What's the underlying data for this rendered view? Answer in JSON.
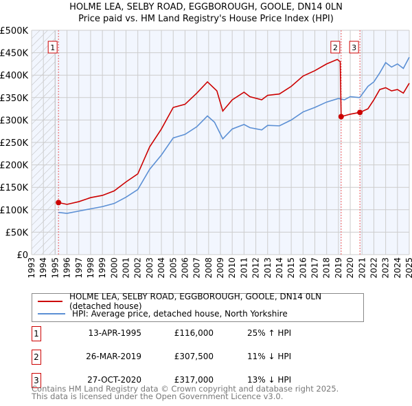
{
  "chart_data": {
    "type": "line",
    "title": "HOLME LEA, SELBY ROAD, EGGBOROUGH, GOOLE, DN14 0LN",
    "subtitle": "Price paid vs. HM Land Registry's House Price Index (HPI)",
    "xlim": [
      1993,
      2025
    ],
    "ylim": [
      0,
      500000
    ],
    "x_ticks": [
      "1993",
      "1994",
      "1995",
      "1996",
      "1997",
      "1998",
      "1999",
      "2000",
      "2001",
      "2002",
      "2003",
      "2004",
      "2005",
      "2006",
      "2007",
      "2008",
      "2009",
      "2010",
      "2011",
      "2012",
      "2013",
      "2014",
      "2015",
      "2016",
      "2017",
      "2018",
      "2019",
      "2020",
      "2021",
      "2022",
      "2023",
      "2024",
      "2025"
    ],
    "y_ticks": [
      {
        "v": 0,
        "label": "£0"
      },
      {
        "v": 50000,
        "label": "£50K"
      },
      {
        "v": 100000,
        "label": "£100K"
      },
      {
        "v": 150000,
        "label": "£150K"
      },
      {
        "v": 200000,
        "label": "£200K"
      },
      {
        "v": 250000,
        "label": "£250K"
      },
      {
        "v": 300000,
        "label": "£300K"
      },
      {
        "v": 350000,
        "label": "£350K"
      },
      {
        "v": 400000,
        "label": "£400K"
      },
      {
        "v": 450000,
        "label": "£450K"
      },
      {
        "v": 500000,
        "label": "£500K"
      }
    ],
    "series": [
      {
        "name": "HOLME LEA, SELBY ROAD, EGGBOROUGH, GOOLE, DN14 0LN (detached house)",
        "color": "#cc0000",
        "x": [
          1995.28,
          1996,
          1997,
          1998,
          1999,
          2000,
          2001,
          2002,
          2003,
          2004,
          2005,
          2006,
          2007,
          2007.9,
          2008.7,
          2009.2,
          2010,
          2011,
          2011.5,
          2012.5,
          2013,
          2014,
          2015,
          2016,
          2017,
          2018,
          2018.9,
          2019.15,
          2019.23,
          2020,
          2020.82,
          2021.5,
          2022,
          2022.5,
          2023,
          2023.5,
          2024,
          2024.5,
          2025
        ],
        "y": [
          116000,
          112000,
          118000,
          127000,
          132000,
          142000,
          162000,
          180000,
          240000,
          280000,
          328000,
          335000,
          360000,
          385000,
          365000,
          320000,
          345000,
          362000,
          352000,
          345000,
          355000,
          358000,
          375000,
          398000,
          410000,
          425000,
          435000,
          430000,
          307500,
          313000,
          317000,
          325000,
          345000,
          368000,
          372000,
          365000,
          368000,
          360000,
          382000
        ]
      },
      {
        "name": "HPI: Average price, detached house, North Yorkshire",
        "color": "#5b8fd4",
        "x": [
          1995.28,
          1996,
          1997,
          1998,
          1999,
          2000,
          2001,
          2002,
          2003,
          2004,
          2005,
          2006,
          2007,
          2007.9,
          2008.5,
          2009.2,
          2010,
          2011,
          2011.5,
          2012.5,
          2013,
          2014,
          2015,
          2016,
          2017,
          2018,
          2019,
          2019.5,
          2020,
          2020.8,
          2021.5,
          2022,
          2022.5,
          2023,
          2023.5,
          2024,
          2024.5,
          2025
        ],
        "y": [
          94000,
          92000,
          97000,
          102000,
          107000,
          114000,
          128000,
          145000,
          190000,
          222000,
          260000,
          268000,
          285000,
          309000,
          295000,
          258000,
          280000,
          290000,
          283000,
          278000,
          288000,
          287000,
          300000,
          318000,
          328000,
          340000,
          348000,
          345000,
          352000,
          350000,
          375000,
          385000,
          405000,
          428000,
          418000,
          425000,
          415000,
          440000
        ]
      }
    ],
    "sales": [
      {
        "n": "1",
        "x": 1995.28,
        "date": "13-APR-1995",
        "price": "£116,000",
        "price_v": 116000,
        "hpi": "25% ↑ HPI"
      },
      {
        "n": "2",
        "x": 2019.23,
        "date": "26-MAR-2019",
        "price": "£307,500",
        "price_v": 307500,
        "hpi": "11% ↓ HPI"
      },
      {
        "n": "3",
        "x": 2020.82,
        "date": "27-OCT-2020",
        "price": "£317,000",
        "price_v": 317000,
        "hpi": "13% ↓ HPI"
      }
    ],
    "hatched_before": 1995.0,
    "legend_placement": "below"
  },
  "footer": [
    "Contains HM Land Registry data © Crown copyright and database right 2025.",
    "This data is licensed under the Open Government Licence v3.0."
  ]
}
